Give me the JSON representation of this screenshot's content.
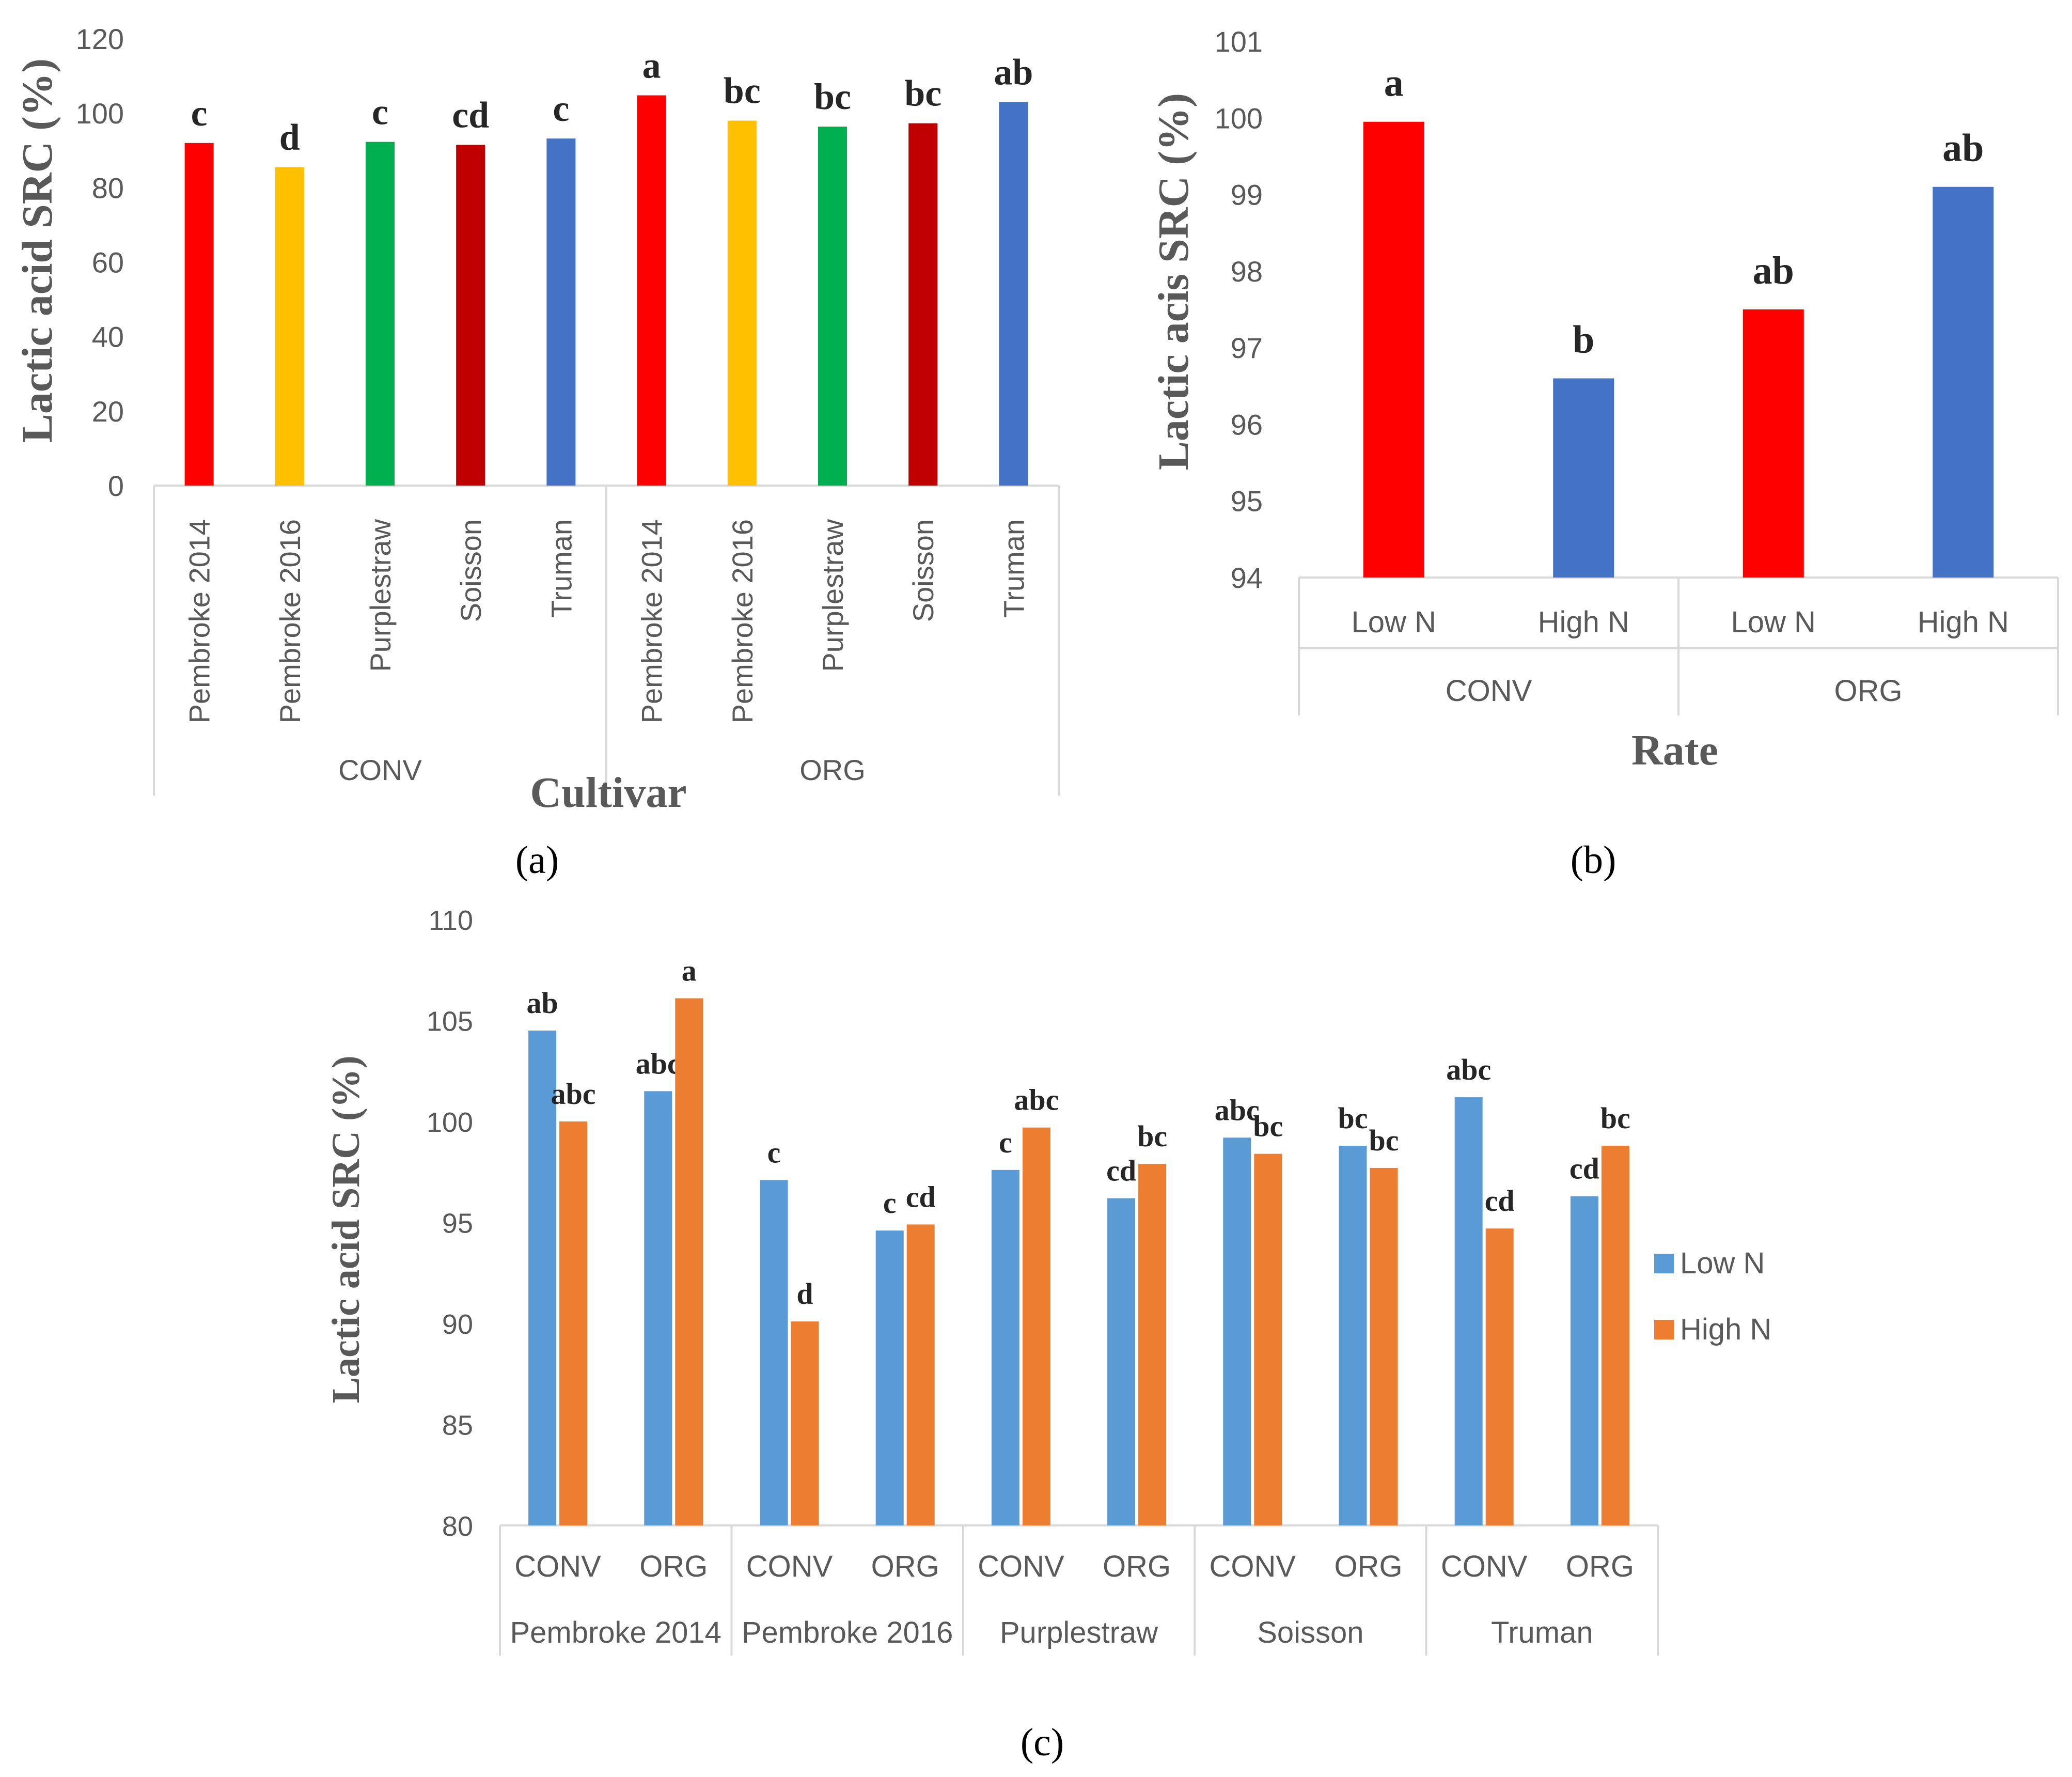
{
  "figure": {
    "panel_labels": [
      "(a)",
      "(b)",
      "(c)"
    ]
  },
  "chart_data": [
    {
      "panel": "(a)",
      "type": "bar",
      "title": "",
      "xlabel": "Cultivar",
      "ylabel": "Lactic acid SRC (%)",
      "ylim": [
        0,
        120
      ],
      "yticks": [
        0,
        20,
        40,
        60,
        80,
        100,
        120
      ],
      "groups": [
        {
          "name": "CONV",
          "categories": [
            "Pembroke 2014",
            "Pembroke 2016",
            "Purplestraw",
            "Soisson",
            "Truman"
          ]
        },
        {
          "name": "ORG",
          "categories": [
            "Pembroke 2014",
            "Pembroke 2016",
            "Purplestraw",
            "Soisson",
            "Truman"
          ]
        }
      ],
      "values": [
        92,
        85.5,
        92.3,
        91.5,
        93.2,
        104.8,
        98,
        96.4,
        97.3,
        103
      ],
      "letters": [
        "c",
        "d",
        "c",
        "cd",
        "c",
        "a",
        "bc",
        "bc",
        "bc",
        "ab"
      ],
      "colors": [
        "#ff0000",
        "#ffc000",
        "#00b050",
        "#c00000",
        "#4472c4",
        "#ff0000",
        "#ffc000",
        "#00b050",
        "#c00000",
        "#4472c4"
      ]
    },
    {
      "panel": "(b)",
      "type": "bar",
      "title": "",
      "xlabel": "Rate",
      "ylabel": "Lactic acis SRC (%)",
      "ylim": [
        94,
        101
      ],
      "yticks": [
        94,
        95,
        96,
        97,
        98,
        99,
        100,
        101
      ],
      "groups": [
        {
          "name": "CONV",
          "categories": [
            "Low N",
            "High N"
          ]
        },
        {
          "name": "ORG",
          "categories": [
            "Low N",
            "High N"
          ]
        }
      ],
      "values": [
        99.95,
        96.6,
        97.5,
        99.1
      ],
      "letters": [
        "a",
        "b",
        "ab",
        "ab"
      ],
      "colors": [
        "#ff0000",
        "#4472c4",
        "#ff0000",
        "#4472c4"
      ]
    },
    {
      "panel": "(c)",
      "type": "bar",
      "title": "",
      "xlabel": "",
      "ylabel": "Lactic acid SRC (%)",
      "ylim": [
        80,
        110
      ],
      "yticks": [
        80,
        85,
        90,
        95,
        100,
        105,
        110
      ],
      "cultivars": [
        "Pembroke 2014",
        "Pembroke 2016",
        "Purplestraw",
        "Soisson",
        "Truman"
      ],
      "systems": [
        "CONV",
        "ORG"
      ],
      "series": [
        {
          "name": "Low N",
          "color": "#5b9bd5",
          "values": [
            104.5,
            101.5,
            97.1,
            94.6,
            97.6,
            96.2,
            99.2,
            98.8,
            101.2,
            96.3
          ],
          "letters": [
            "ab",
            "abc",
            "c",
            "c",
            "c",
            "cd",
            "abc",
            "bc",
            "abc",
            "cd"
          ]
        },
        {
          "name": "High N",
          "color": "#ed7d31",
          "values": [
            100,
            106.1,
            90.1,
            94.9,
            99.7,
            97.9,
            98.4,
            97.7,
            94.7,
            98.8
          ],
          "letters": [
            "abc",
            "a",
            "d",
            "cd",
            "abc",
            "bc",
            "bc",
            "bc",
            "cd",
            "bc"
          ]
        }
      ],
      "legend": "right"
    }
  ]
}
